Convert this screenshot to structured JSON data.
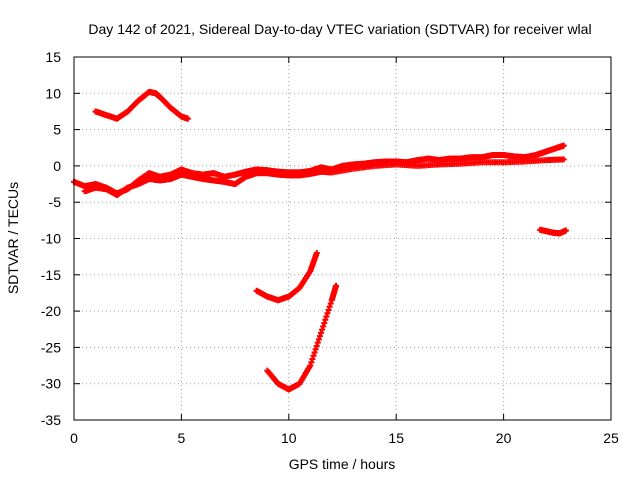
{
  "chart_data": {
    "type": "scatter",
    "title": "Day 142 of 2021, Sidereal Day-to-day VTEC variation (SDTVAR) for receiver wlal",
    "xlabel": "GPS time / hours",
    "ylabel": "SDTVAR / TECUs",
    "xlim": [
      0,
      25
    ],
    "ylim": [
      -35,
      15
    ],
    "xticks": [
      0,
      5,
      10,
      15,
      20,
      25
    ],
    "yticks": [
      -35,
      -30,
      -25,
      -20,
      -15,
      -10,
      -5,
      0,
      5,
      10,
      15
    ],
    "grid": true,
    "marker": "plus",
    "color": "#ff0000",
    "series": [
      {
        "name": "main-band-upper",
        "x": [
          0,
          0.5,
          1.0,
          1.5,
          2.0,
          2.5,
          3.0,
          3.5,
          4.0,
          4.5,
          5.0,
          5.5,
          6.0,
          6.5,
          7.0,
          7.5,
          8.0,
          8.5,
          9.0,
          9.5,
          10.0,
          10.5,
          11.0,
          11.5,
          12.0,
          12.5,
          13.0,
          13.5,
          14.0,
          14.5,
          15.0,
          15.5,
          16.0,
          16.5,
          17.0,
          17.5,
          18.0,
          18.5,
          19.0,
          19.5,
          20.0,
          20.5,
          21.0,
          21.5,
          22.0,
          22.5,
          22.8
        ],
        "y": [
          -2.2,
          -2.8,
          -2.5,
          -3.0,
          -3.8,
          -3.2,
          -2.0,
          -1.0,
          -1.5,
          -1.2,
          -0.5,
          -1.0,
          -1.2,
          -1.0,
          -1.5,
          -1.2,
          -0.8,
          -0.5,
          -0.6,
          -0.8,
          -0.9,
          -0.9,
          -0.7,
          -0.2,
          -0.5,
          0.0,
          0.2,
          0.3,
          0.5,
          0.6,
          0.6,
          0.5,
          0.8,
          1.0,
          0.8,
          1.0,
          1.0,
          1.2,
          1.2,
          1.5,
          1.5,
          1.3,
          1.2,
          1.5,
          2.0,
          2.5,
          2.8
        ]
      },
      {
        "name": "main-band-lower",
        "x": [
          0.5,
          1.0,
          1.5,
          2.0,
          2.5,
          3.0,
          3.5,
          4.0,
          4.5,
          5.0,
          5.5,
          6.0,
          6.5,
          7.0,
          7.5,
          8.0,
          8.5,
          9.0,
          9.5,
          10.0,
          10.5,
          11.0,
          11.5,
          12.0,
          13.0,
          14.0,
          15.0,
          16.0,
          17.0,
          18.0,
          19.0,
          20.0,
          21.0,
          22.0,
          22.8
        ],
        "y": [
          -3.5,
          -3.0,
          -3.2,
          -4.0,
          -3.0,
          -2.5,
          -1.8,
          -2.0,
          -1.8,
          -1.2,
          -1.5,
          -1.8,
          -2.0,
          -2.2,
          -2.5,
          -1.5,
          -1.0,
          -1.0,
          -1.2,
          -1.3,
          -1.3,
          -1.1,
          -0.8,
          -0.9,
          -0.4,
          0.0,
          0.2,
          0.0,
          0.2,
          0.3,
          0.5,
          0.5,
          0.6,
          0.8,
          0.9
        ]
      },
      {
        "name": "upper-arc",
        "x": [
          1.0,
          1.5,
          2.0,
          2.5,
          3.0,
          3.5,
          3.8,
          4.0,
          4.5,
          5.0,
          5.3
        ],
        "y": [
          7.5,
          7.0,
          6.5,
          7.5,
          9.0,
          10.2,
          10.0,
          9.5,
          8.0,
          6.8,
          6.5
        ]
      },
      {
        "name": "curve-minus-18",
        "x": [
          8.5,
          9.0,
          9.5,
          10.0,
          10.5,
          11.0,
          11.3
        ],
        "y": [
          -17.2,
          -18.0,
          -18.5,
          -18.0,
          -16.8,
          -14.5,
          -12.0
        ]
      },
      {
        "name": "curve-minus-30",
        "x": [
          9.0,
          9.5,
          10.0,
          10.5,
          11.0,
          11.5,
          12.0,
          12.2
        ],
        "y": [
          -28.2,
          -30.0,
          -30.8,
          -30.0,
          -27.5,
          -23.0,
          -18.5,
          -16.5
        ]
      },
      {
        "name": "segment-minus-9",
        "x": [
          21.7,
          22.0,
          22.3,
          22.6,
          22.9
        ],
        "y": [
          -8.8,
          -9.0,
          -9.2,
          -9.3,
          -8.9
        ]
      }
    ]
  }
}
